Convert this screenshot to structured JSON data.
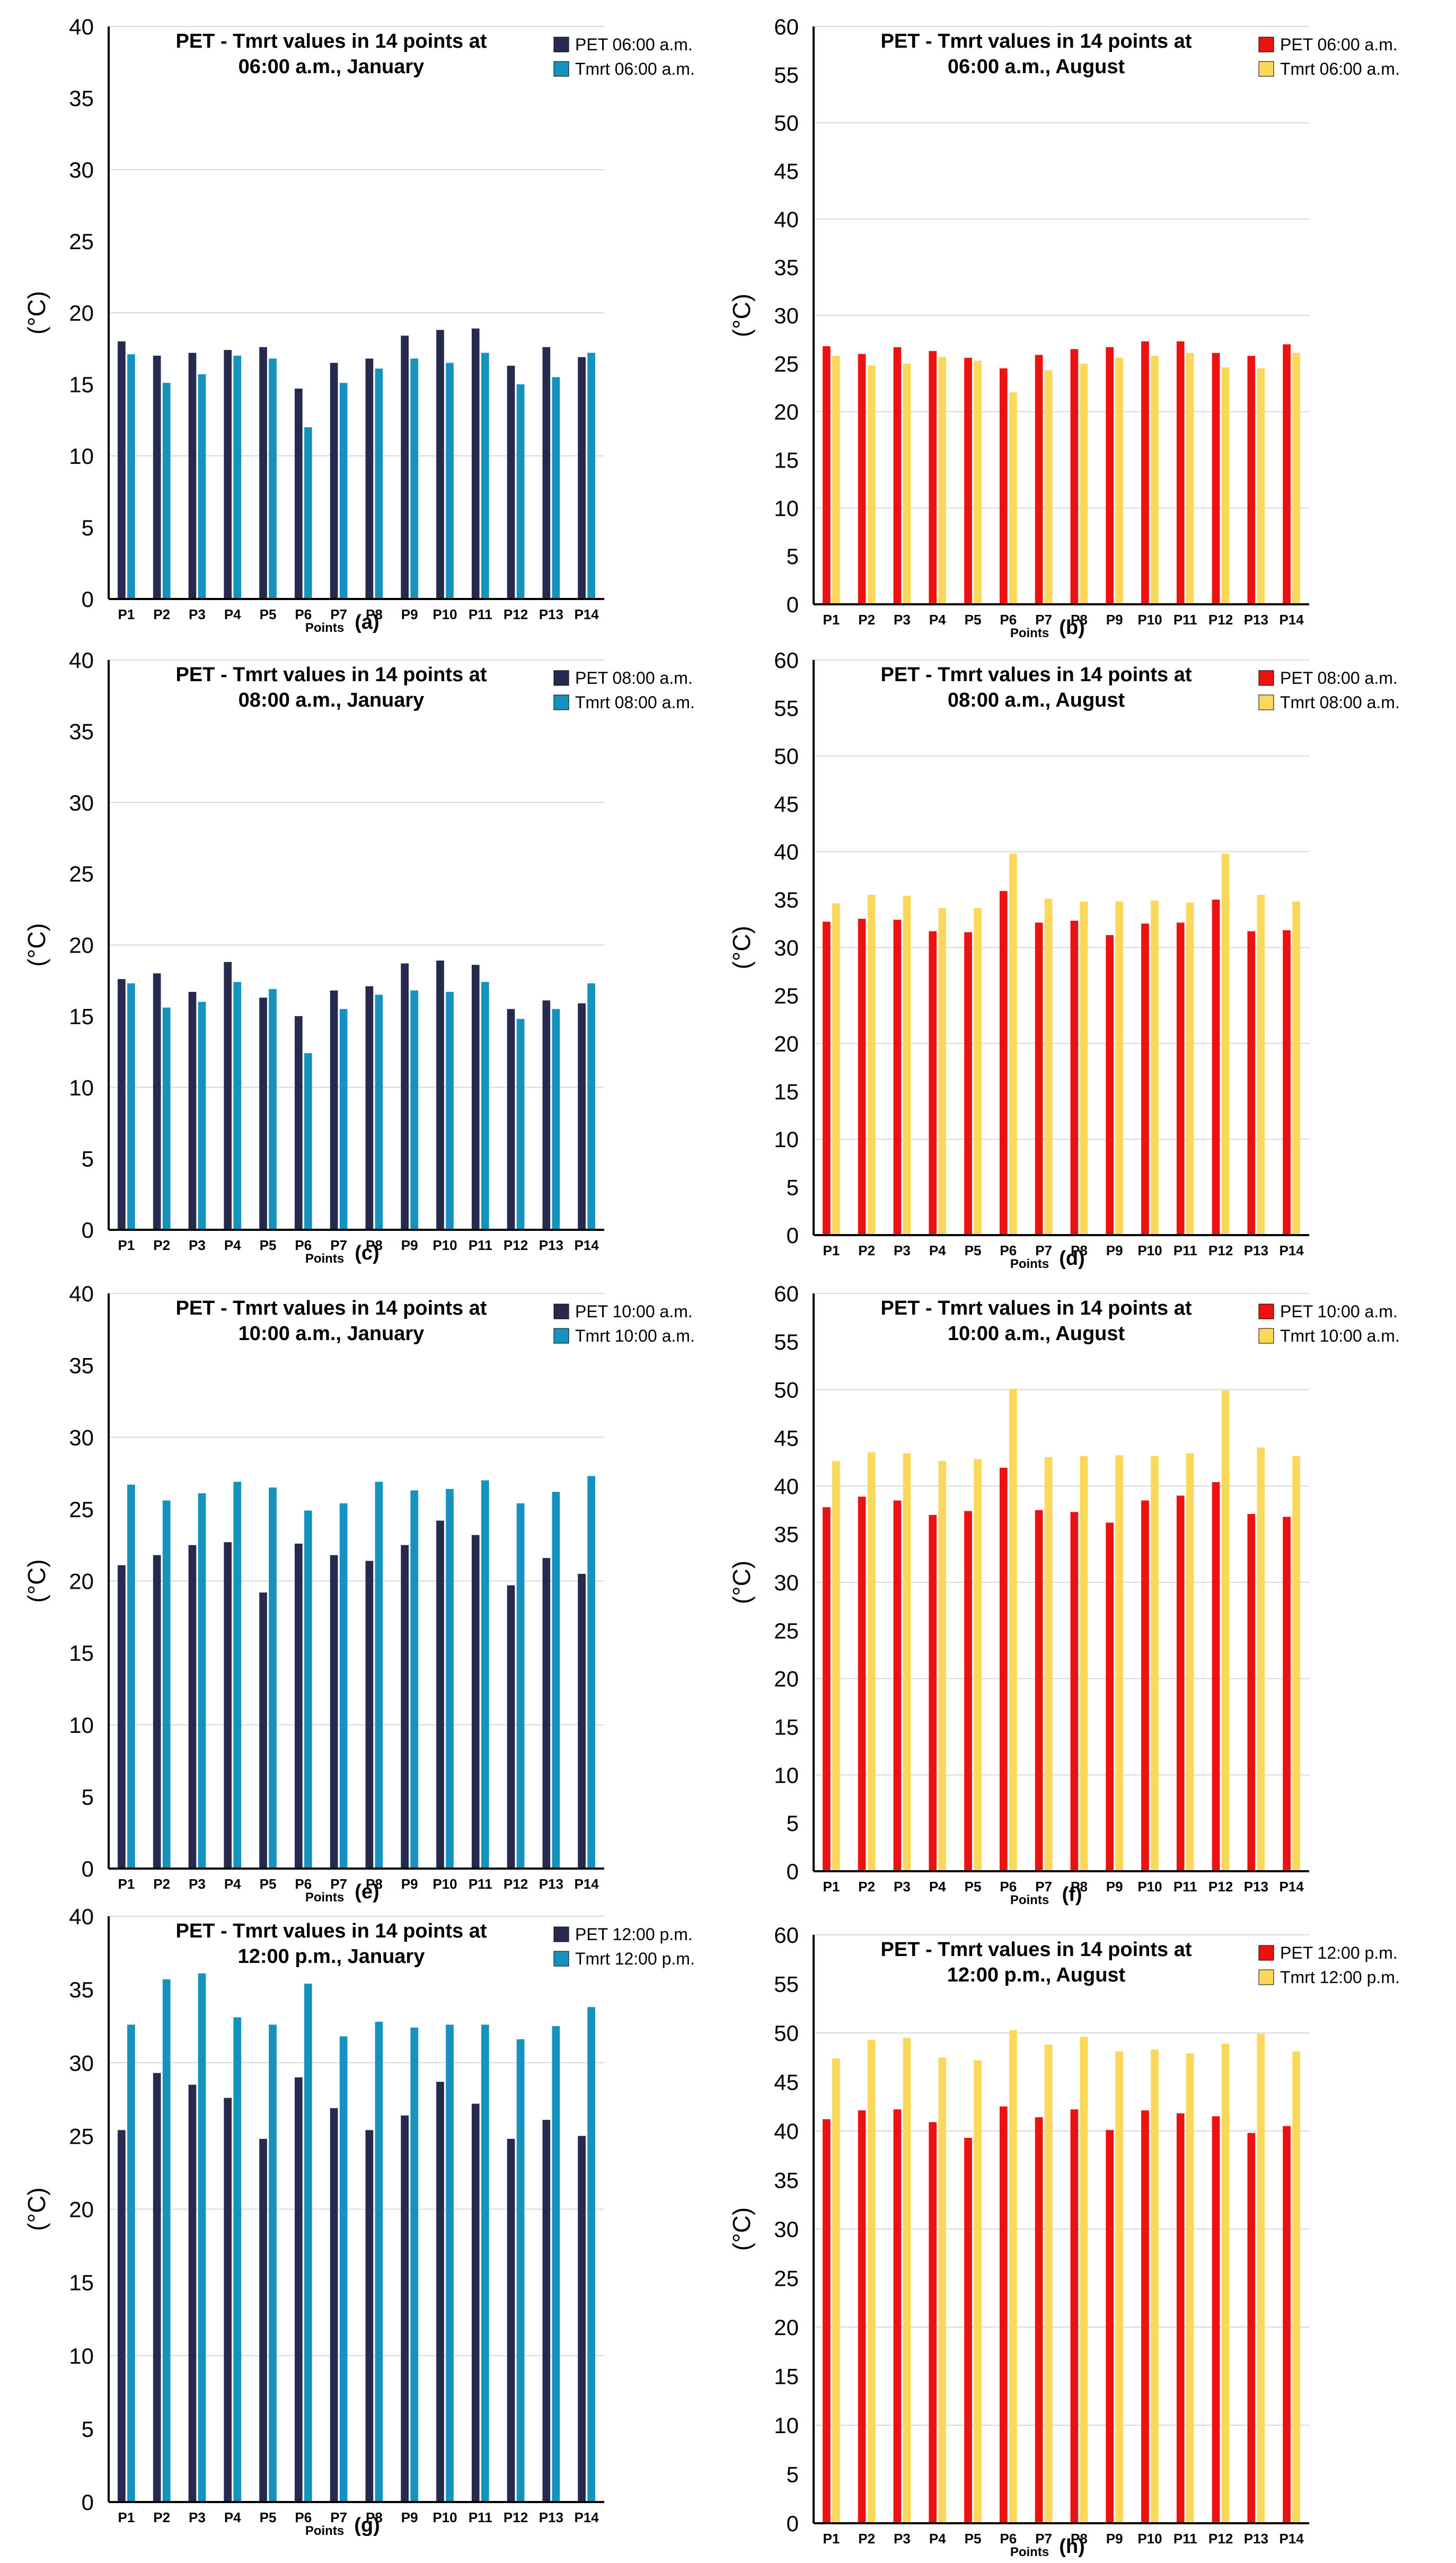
{
  "figure": {
    "description_title": "PET - Tmrt values in 14 points"
  },
  "colors": {
    "pet_january": "#262a4f",
    "tmrt_january": "#1592bd",
    "pet_august": "#ee1111",
    "tmrt_august": "#fbd85a",
    "grid": "#d9d9d9",
    "axis": "#000000"
  },
  "chart_data": [
    {
      "id": "a",
      "type": "bar",
      "title_line1": "PET   - Tmrt values in 14 points at",
      "title_line2": "06:00 a.m., January",
      "xlabel": "Points",
      "ylabel": "(°C)",
      "panel_label": "(a)",
      "ylim": [
        0,
        40
      ],
      "yticks": [
        0,
        5,
        10,
        15,
        20,
        25,
        30,
        35,
        40
      ],
      "categories": [
        "P1",
        "P2",
        "P3",
        "P4",
        "P5",
        "P6",
        "P7",
        "P8",
        "P9",
        "P10",
        "P11",
        "P12",
        "P13",
        "P14"
      ],
      "series": [
        {
          "name": "PET 06:00 a.m.",
          "color_key": "pet_january",
          "values": [
            18.0,
            17.0,
            17.2,
            17.4,
            17.6,
            14.7,
            16.5,
            16.8,
            18.4,
            18.8,
            18.9,
            16.3,
            17.6,
            16.9
          ]
        },
        {
          "name": "Tmrt 06:00 a.m.",
          "color_key": "tmrt_january",
          "values": [
            17.1,
            15.1,
            15.7,
            17.0,
            16.8,
            12.0,
            15.1,
            16.1,
            16.8,
            16.5,
            17.2,
            15.0,
            15.5,
            17.2
          ]
        }
      ]
    },
    {
      "id": "b",
      "type": "bar",
      "title_line1": "PET   - Tmrt values in 14 points at",
      "title_line2": "06:00 a.m., August",
      "xlabel": "Points",
      "ylabel": "(°C)",
      "panel_label": "(b)",
      "ylim": [
        0,
        60
      ],
      "yticks": [
        0,
        5,
        10,
        15,
        20,
        25,
        30,
        35,
        40,
        45,
        50,
        55,
        60
      ],
      "categories": [
        "P1",
        "P2",
        "P3",
        "P4",
        "P5",
        "P6",
        "P7",
        "P8",
        "P9",
        "P10",
        "P11",
        "P12",
        "P13",
        "P14"
      ],
      "series": [
        {
          "name": "PET 06:00 a.m.",
          "color_key": "pet_august",
          "values": [
            26.8,
            26.0,
            26.7,
            26.3,
            25.6,
            24.5,
            25.9,
            26.5,
            26.7,
            27.3,
            27.3,
            26.1,
            25.8,
            27.0
          ]
        },
        {
          "name": "Tmrt 06:00 a.m.",
          "color_key": "tmrt_august",
          "values": [
            25.8,
            24.8,
            25.0,
            25.7,
            25.3,
            22.0,
            24.3,
            25.0,
            25.6,
            25.8,
            26.1,
            24.6,
            24.5,
            26.1
          ]
        }
      ]
    },
    {
      "id": "c",
      "type": "bar",
      "title_line1": "PET   - Tmrt values in 14 points at",
      "title_line2": "08:00 a.m., January",
      "xlabel": "Points",
      "ylabel": "(°C)",
      "panel_label": "(c)",
      "ylim": [
        0,
        40
      ],
      "yticks": [
        0,
        5,
        10,
        15,
        20,
        25,
        30,
        35,
        40
      ],
      "categories": [
        "P1",
        "P2",
        "P3",
        "P4",
        "P5",
        "P6",
        "P7",
        "P8",
        "P9",
        "P10",
        "P11",
        "P12",
        "P13",
        "P14"
      ],
      "series": [
        {
          "name": "PET 08:00 a.m.",
          "color_key": "pet_january",
          "values": [
            17.6,
            18.0,
            16.7,
            18.8,
            16.3,
            15.0,
            16.8,
            17.1,
            18.7,
            18.9,
            18.6,
            15.5,
            16.1,
            15.9
          ]
        },
        {
          "name": "Tmrt 08:00 a.m.",
          "color_key": "tmrt_january",
          "values": [
            17.3,
            15.6,
            16.0,
            17.4,
            16.9,
            12.4,
            15.5,
            16.5,
            16.8,
            16.7,
            17.4,
            14.8,
            15.5,
            17.3
          ]
        }
      ]
    },
    {
      "id": "d",
      "type": "bar",
      "title_line1": "PET   - Tmrt values in 14 points at",
      "title_line2": "08:00 a.m., August",
      "xlabel": "Points",
      "ylabel": "(°C)",
      "panel_label": "(d)",
      "ylim": [
        0,
        60
      ],
      "yticks": [
        0,
        5,
        10,
        15,
        20,
        25,
        30,
        35,
        40,
        45,
        50,
        55,
        60
      ],
      "categories": [
        "P1",
        "P2",
        "P3",
        "P4",
        "P5",
        "P6",
        "P7",
        "P8",
        "P9",
        "P10",
        "P11",
        "P12",
        "P13",
        "P14"
      ],
      "series": [
        {
          "name": "PET 08:00 a.m.",
          "color_key": "pet_august",
          "values": [
            32.7,
            33.0,
            32.9,
            31.7,
            31.6,
            35.9,
            32.6,
            32.8,
            31.3,
            32.5,
            32.6,
            35.0,
            31.7,
            31.8
          ]
        },
        {
          "name": "Tmrt 08:00 a.m.",
          "color_key": "tmrt_august",
          "values": [
            34.6,
            35.5,
            35.4,
            34.1,
            34.1,
            39.8,
            35.1,
            34.8,
            34.8,
            34.9,
            34.7,
            39.8,
            35.5,
            34.8
          ]
        }
      ]
    },
    {
      "id": "e",
      "type": "bar",
      "title_line1": "PET   - Tmrt values in 14 points at",
      "title_line2": "10:00 a.m., January",
      "xlabel": "Points",
      "ylabel": "(°C)",
      "panel_label": "(e)",
      "ylim": [
        0,
        40
      ],
      "yticks": [
        0,
        5,
        10,
        15,
        20,
        25,
        30,
        35,
        40
      ],
      "categories": [
        "P1",
        "P2",
        "P3",
        "P4",
        "P5",
        "P6",
        "P7",
        "P8",
        "P9",
        "P10",
        "P11",
        "P12",
        "P13",
        "P14"
      ],
      "series": [
        {
          "name": "PET 10:00 a.m.",
          "color_key": "pet_january",
          "values": [
            21.1,
            21.8,
            22.5,
            22.7,
            19.2,
            22.6,
            21.8,
            21.4,
            22.5,
            24.2,
            23.2,
            19.7,
            21.6,
            20.5
          ]
        },
        {
          "name": "Tmrt 10:00 a.m.",
          "color_key": "tmrt_january",
          "values": [
            26.7,
            25.6,
            26.1,
            26.9,
            26.5,
            24.9,
            25.4,
            26.9,
            26.3,
            26.4,
            27.0,
            25.4,
            26.2,
            27.3
          ]
        }
      ]
    },
    {
      "id": "f",
      "type": "bar",
      "title_line1": "PET   - Tmrt values in 14 points at",
      "title_line2": "10:00 a.m., August",
      "xlabel": "Points",
      "ylabel": "(°C)",
      "panel_label": "(f)",
      "ylim": [
        0,
        60
      ],
      "yticks": [
        0,
        5,
        10,
        15,
        20,
        25,
        30,
        35,
        40,
        45,
        50,
        55,
        60
      ],
      "categories": [
        "P1",
        "P2",
        "P3",
        "P4",
        "P5",
        "P6",
        "P7",
        "P8",
        "P9",
        "P10",
        "P11",
        "P12",
        "P13",
        "P14"
      ],
      "series": [
        {
          "name": "PET 10:00 a.m.",
          "color_key": "pet_august",
          "values": [
            37.8,
            38.9,
            38.5,
            37.0,
            37.4,
            41.9,
            37.5,
            37.3,
            36.2,
            38.5,
            39.0,
            40.4,
            37.1,
            36.8
          ]
        },
        {
          "name": "Tmrt 10:00 a.m.",
          "color_key": "tmrt_august",
          "values": [
            42.6,
            43.5,
            43.4,
            42.6,
            42.8,
            50.1,
            43.0,
            43.1,
            43.2,
            43.1,
            43.4,
            49.9,
            44.0,
            43.1
          ]
        }
      ]
    },
    {
      "id": "g",
      "type": "bar",
      "title_line1": "PET   - Tmrt values in 14 points at",
      "title_line2": "12:00 p.m., January",
      "xlabel": "Points",
      "ylabel": "(°C)",
      "panel_label": "(g)",
      "ylim": [
        0,
        40
      ],
      "yticks": [
        0,
        5,
        10,
        15,
        20,
        25,
        30,
        35,
        40
      ],
      "categories": [
        "P1",
        "P2",
        "P3",
        "P4",
        "P5",
        "P6",
        "P7",
        "P8",
        "P9",
        "P10",
        "P11",
        "P12",
        "P13",
        "P14"
      ],
      "series": [
        {
          "name": "PET 12:00 p.m.",
          "color_key": "pet_january",
          "values": [
            25.4,
            29.3,
            28.5,
            27.6,
            24.8,
            29.0,
            26.9,
            25.4,
            26.4,
            28.7,
            27.2,
            24.8,
            26.1,
            25.0
          ]
        },
        {
          "name": "Tmrt 12:00 p.m.",
          "color_key": "tmrt_january",
          "values": [
            32.6,
            35.7,
            36.1,
            33.1,
            32.6,
            35.4,
            31.8,
            32.8,
            32.4,
            32.6,
            32.6,
            31.6,
            32.5,
            33.8
          ]
        }
      ]
    },
    {
      "id": "h",
      "type": "bar",
      "title_line1": "PET   - Tmrt values in 14 points at",
      "title_line2": "12:00 p.m., August",
      "xlabel": "Points",
      "ylabel": "(°C)",
      "panel_label": "(h)",
      "ylim": [
        0,
        60
      ],
      "yticks": [
        0,
        5,
        10,
        15,
        20,
        25,
        30,
        35,
        40,
        45,
        50,
        55,
        60
      ],
      "categories": [
        "P1",
        "P2",
        "P3",
        "P4",
        "P5",
        "P6",
        "P7",
        "P8",
        "P9",
        "P10",
        "P11",
        "P12",
        "P13",
        "P14"
      ],
      "series": [
        {
          "name": "PET 12:00 p.m.",
          "color_key": "pet_august",
          "values": [
            41.2,
            42.1,
            42.2,
            40.9,
            39.3,
            42.5,
            41.4,
            42.2,
            40.1,
            42.1,
            41.8,
            41.5,
            39.8,
            40.5
          ]
        },
        {
          "name": "Tmrt 12:00 p.m.",
          "color_key": "tmrt_august",
          "values": [
            47.4,
            49.3,
            49.5,
            47.5,
            47.2,
            50.3,
            48.8,
            49.6,
            48.1,
            48.3,
            47.9,
            48.9,
            49.9,
            48.1
          ]
        }
      ]
    }
  ]
}
